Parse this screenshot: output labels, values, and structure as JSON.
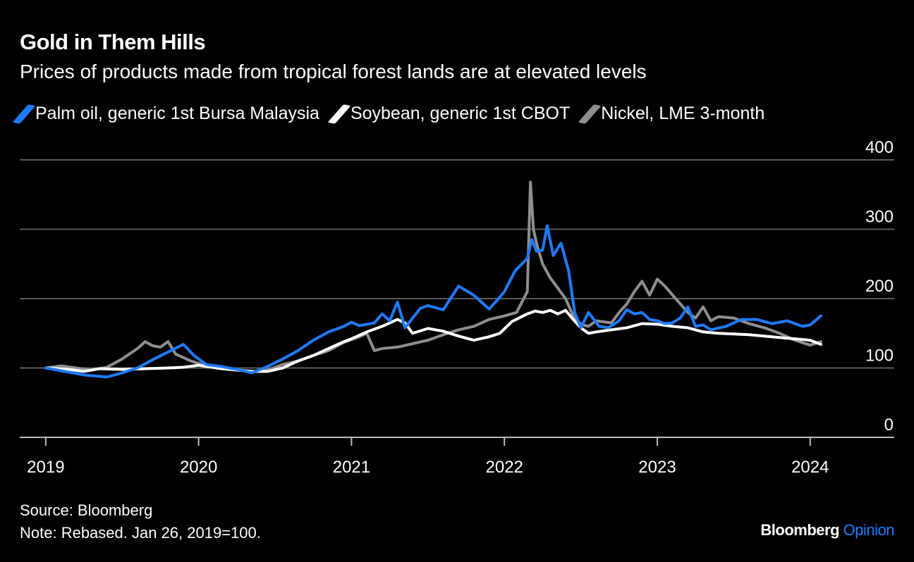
{
  "header": {
    "title": "Gold in Them Hills",
    "subtitle": "Prices of products made from tropical forest lands are at elevated levels"
  },
  "footer": {
    "source": "Source: Bloomberg",
    "note": "Note: Rebased. Jan 26, 2019=100."
  },
  "brand": {
    "name": "Bloomberg",
    "suffix": "Opinion"
  },
  "colors": {
    "palm": "#1f7aff",
    "soy": "#ffffff",
    "nickel": "#8e8e8e",
    "grid": "#5a5a5a",
    "accent": "#1f7aff"
  },
  "chart_data": {
    "type": "line",
    "title": "Gold in Them Hills",
    "subtitle": "Prices of products made from tropical forest lands are at elevated levels",
    "xlabel": "",
    "ylabel": "",
    "ylim": [
      0,
      400
    ],
    "xlim": [
      2018.83,
      2024.55
    ],
    "yticks": [
      0,
      100,
      200,
      300,
      400
    ],
    "xticks": [
      {
        "value": 2019.0,
        "label": "2019"
      },
      {
        "value": 2020.0,
        "label": "2020"
      },
      {
        "value": 2021.0,
        "label": "2021"
      },
      {
        "value": 2022.0,
        "label": "2022"
      },
      {
        "value": 2023.0,
        "label": "2023"
      },
      {
        "value": 2024.0,
        "label": "2024"
      }
    ],
    "grid": true,
    "legend": "top-left",
    "series": [
      {
        "name": "Palm oil, generic 1st Bursa Malaysia",
        "color": "#1f7aff",
        "x": [
          2019.0,
          2019.15,
          2019.25,
          2019.4,
          2019.5,
          2019.6,
          2019.7,
          2019.8,
          2019.9,
          2019.97,
          2020.05,
          2020.15,
          2020.25,
          2020.35,
          2020.45,
          2020.55,
          2020.65,
          2020.75,
          2020.85,
          2020.95,
          2021.0,
          2021.05,
          2021.15,
          2021.2,
          2021.25,
          2021.3,
          2021.35,
          2021.45,
          2021.5,
          2021.6,
          2021.7,
          2021.8,
          2021.9,
          2021.95,
          2022.0,
          2022.07,
          2022.15,
          2022.18,
          2022.21,
          2022.25,
          2022.28,
          2022.32,
          2022.37,
          2022.42,
          2022.46,
          2022.5,
          2022.55,
          2022.62,
          2022.68,
          2022.75,
          2022.8,
          2022.85,
          2022.9,
          2022.95,
          2023.0,
          2023.05,
          2023.1,
          2023.15,
          2023.2,
          2023.25,
          2023.3,
          2023.35,
          2023.45,
          2023.55,
          2023.65,
          2023.75,
          2023.85,
          2023.95,
          2024.0,
          2024.07
        ],
        "values": [
          100,
          94,
          90,
          87,
          93,
          100,
          112,
          123,
          134,
          118,
          105,
          102,
          98,
          93,
          102,
          113,
          125,
          140,
          152,
          160,
          166,
          161,
          165,
          178,
          168,
          195,
          158,
          186,
          190,
          184,
          218,
          205,
          185,
          197,
          210,
          240,
          258,
          285,
          268,
          270,
          305,
          262,
          280,
          240,
          180,
          158,
          180,
          160,
          158,
          168,
          184,
          178,
          180,
          170,
          168,
          164,
          165,
          172,
          188,
          160,
          162,
          155,
          160,
          170,
          170,
          164,
          168,
          160,
          162,
          175
        ]
      },
      {
        "name": "Soybean, generic 1st CBOT",
        "color": "#ffffff",
        "x": [
          2019.0,
          2019.15,
          2019.25,
          2019.35,
          2019.5,
          2019.65,
          2019.8,
          2019.9,
          2020.0,
          2020.15,
          2020.25,
          2020.35,
          2020.45,
          2020.55,
          2020.65,
          2020.75,
          2020.85,
          2020.95,
          2021.0,
          2021.1,
          2021.2,
          2021.3,
          2021.35,
          2021.4,
          2021.5,
          2021.6,
          2021.7,
          2021.8,
          2021.9,
          2021.97,
          2022.05,
          2022.15,
          2022.2,
          2022.25,
          2022.3,
          2022.35,
          2022.4,
          2022.45,
          2022.5,
          2022.55,
          2022.6,
          2022.7,
          2022.8,
          2022.9,
          2023.0,
          2023.1,
          2023.2,
          2023.3,
          2023.4,
          2023.5,
          2023.6,
          2023.7,
          2023.8,
          2023.9,
          2024.0,
          2024.07
        ],
        "values": [
          100,
          98,
          95,
          99,
          98,
          99,
          100,
          101,
          104,
          99,
          97,
          95,
          95,
          100,
          110,
          118,
          128,
          138,
          142,
          152,
          160,
          170,
          165,
          150,
          157,
          153,
          146,
          140,
          145,
          150,
          167,
          178,
          182,
          180,
          183,
          178,
          183,
          170,
          158,
          150,
          152,
          155,
          158,
          164,
          163,
          160,
          158,
          152,
          150,
          149,
          148,
          146,
          144,
          142,
          140,
          134
        ]
      },
      {
        "name": "Nickel, LME 3-month",
        "color": "#8e8e8e",
        "x": [
          2019.0,
          2019.1,
          2019.2,
          2019.3,
          2019.4,
          2019.5,
          2019.6,
          2019.65,
          2019.7,
          2019.75,
          2019.8,
          2019.85,
          2019.95,
          2020.05,
          2020.15,
          2020.25,
          2020.35,
          2020.45,
          2020.55,
          2020.65,
          2020.75,
          2020.85,
          2020.95,
          2021.05,
          2021.1,
          2021.15,
          2021.2,
          2021.3,
          2021.4,
          2021.5,
          2021.6,
          2021.7,
          2021.8,
          2021.9,
          2022.0,
          2022.08,
          2022.15,
          2022.17,
          2022.19,
          2022.21,
          2022.25,
          2022.3,
          2022.35,
          2022.4,
          2022.45,
          2022.5,
          2022.55,
          2022.6,
          2022.7,
          2022.75,
          2022.8,
          2022.85,
          2022.9,
          2022.95,
          2023.0,
          2023.05,
          2023.1,
          2023.2,
          2023.25,
          2023.3,
          2023.35,
          2023.4,
          2023.5,
          2023.6,
          2023.7,
          2023.8,
          2023.9,
          2024.0,
          2024.07
        ],
        "values": [
          100,
          103,
          100,
          97,
          101,
          113,
          128,
          138,
          132,
          130,
          138,
          120,
          110,
          103,
          101,
          98,
          94,
          97,
          105,
          110,
          118,
          125,
          137,
          145,
          150,
          125,
          128,
          130,
          135,
          140,
          148,
          155,
          160,
          170,
          175,
          180,
          210,
          368,
          300,
          280,
          250,
          230,
          215,
          200,
          175,
          163,
          160,
          168,
          165,
          180,
          192,
          210,
          225,
          205,
          228,
          218,
          205,
          180,
          172,
          188,
          168,
          174,
          172,
          164,
          158,
          150,
          140,
          133,
          138
        ]
      }
    ]
  }
}
